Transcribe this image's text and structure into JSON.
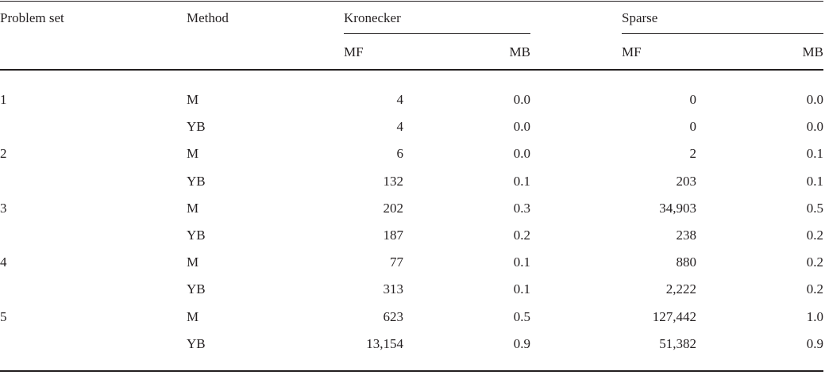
{
  "table": {
    "headers": {
      "problem_set": "Problem set",
      "method": "Method",
      "kronecker": "Kronecker",
      "sparse": "Sparse",
      "kron_mf": "MF",
      "kron_mb": "MB",
      "sparse_mf": "MF",
      "sparse_mb": "MB"
    },
    "rows": [
      {
        "problem_set": "1",
        "method": "M",
        "kron_mf": "4",
        "kron_mb": "0.0",
        "sparse_mf": "0",
        "sparse_mb": "0.0"
      },
      {
        "problem_set": "",
        "method": "YB",
        "kron_mf": "4",
        "kron_mb": "0.0",
        "sparse_mf": "0",
        "sparse_mb": "0.0"
      },
      {
        "problem_set": "2",
        "method": "M",
        "kron_mf": "6",
        "kron_mb": "0.0",
        "sparse_mf": "2",
        "sparse_mb": "0.1"
      },
      {
        "problem_set": "",
        "method": "YB",
        "kron_mf": "132",
        "kron_mb": "0.1",
        "sparse_mf": "203",
        "sparse_mb": "0.1"
      },
      {
        "problem_set": "3",
        "method": "M",
        "kron_mf": "202",
        "kron_mb": "0.3",
        "sparse_mf": "34,903",
        "sparse_mb": "0.5"
      },
      {
        "problem_set": "",
        "method": "YB",
        "kron_mf": "187",
        "kron_mb": "0.2",
        "sparse_mf": "238",
        "sparse_mb": "0.2"
      },
      {
        "problem_set": "4",
        "method": "M",
        "kron_mf": "77",
        "kron_mb": "0.1",
        "sparse_mf": "880",
        "sparse_mb": "0.2"
      },
      {
        "problem_set": "",
        "method": "YB",
        "kron_mf": "313",
        "kron_mb": "0.1",
        "sparse_mf": "2,222",
        "sparse_mb": "0.2"
      },
      {
        "problem_set": "5",
        "method": "M",
        "kron_mf": "623",
        "kron_mb": "0.5",
        "sparse_mf": "127,442",
        "sparse_mb": "1.0"
      },
      {
        "problem_set": "",
        "method": "YB",
        "kron_mf": "13,154",
        "kron_mb": "0.9",
        "sparse_mf": "51,382",
        "sparse_mb": "0.9"
      }
    ]
  }
}
